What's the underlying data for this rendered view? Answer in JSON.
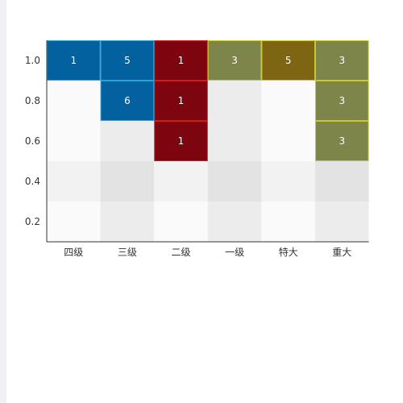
{
  "chart_data": {
    "type": "heatmap",
    "title": "",
    "xlabel": "",
    "ylabel": "",
    "x_categories": [
      "四级",
      "三级",
      "二级",
      "一级",
      "特大",
      "重大"
    ],
    "y_ticks": [
      "0.2",
      "0.4",
      "0.6",
      "0.8",
      "1.0"
    ],
    "y_levels": [
      1.0,
      0.8,
      0.6,
      0.4,
      0.2
    ],
    "grid": false,
    "legend": "none",
    "stripe_colors": [
      "#fafafa",
      "#ececec",
      "#f2f2f2",
      "#e3e3e3"
    ],
    "cells": [
      {
        "x": "四级",
        "y": 1.0,
        "value": "1",
        "fill": "#03619f",
        "stroke": "#27a4d8"
      },
      {
        "x": "三级",
        "y": 1.0,
        "value": "5",
        "fill": "#03619f",
        "stroke": "#27a4d8"
      },
      {
        "x": "三级",
        "y": 0.8,
        "value": "6",
        "fill": "#03619f",
        "stroke": "#27a4d8"
      },
      {
        "x": "二级",
        "y": 1.0,
        "value": "1",
        "fill": "#7d0510",
        "stroke": "#d11a1a"
      },
      {
        "x": "二级",
        "y": 0.8,
        "value": "1",
        "fill": "#7d0510",
        "stroke": "#d11a1a"
      },
      {
        "x": "二级",
        "y": 0.6,
        "value": "1",
        "fill": "#7d0510",
        "stroke": "#d11a1a"
      },
      {
        "x": "一级",
        "y": 1.0,
        "value": "3",
        "fill": "#7e854a",
        "stroke": "#c9c92a"
      },
      {
        "x": "特大",
        "y": 1.0,
        "value": "5",
        "fill": "#7e6514",
        "stroke": "#c9c92a"
      },
      {
        "x": "重大",
        "y": 1.0,
        "value": "3",
        "fill": "#7e854a",
        "stroke": "#c9c92a"
      },
      {
        "x": "重大",
        "y": 0.8,
        "value": "3",
        "fill": "#7e854a",
        "stroke": "#c9c92a"
      },
      {
        "x": "重大",
        "y": 0.6,
        "value": "3",
        "fill": "#7e854a",
        "stroke": "#c9c92a"
      }
    ]
  }
}
